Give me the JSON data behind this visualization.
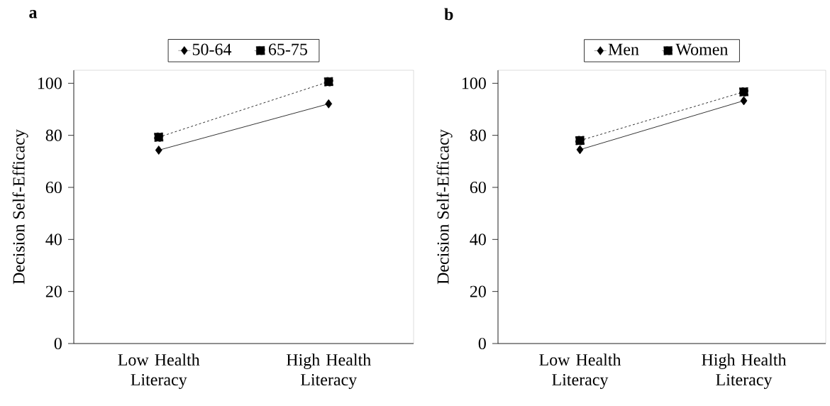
{
  "chart_data": [
    {
      "type": "line",
      "title": "a",
      "ylabel": "Decision Self-Efficacy",
      "categories": [
        "Low Health Literacy",
        "High Health Literacy"
      ],
      "series": [
        {
          "name": "50-64",
          "color": "#000000",
          "values": [
            74.3,
            92.1
          ],
          "marker": "diamond",
          "line_style": "solid"
        },
        {
          "name": "65-75",
          "color": "#000000",
          "values": [
            79.3,
            100.6
          ],
          "marker": "square",
          "line_style": "dashed"
        }
      ],
      "ylim": [
        0,
        105
      ],
      "yticks": [
        0,
        20,
        40,
        60,
        80,
        100
      ],
      "legend": "top"
    },
    {
      "type": "line",
      "title": "b",
      "ylabel": "Decision Self-Efficacy",
      "categories": [
        "Low Health Literacy",
        "High Health Literacy"
      ],
      "series": [
        {
          "name": "Men",
          "color": "#000000",
          "values": [
            74.5,
            93.3
          ],
          "marker": "diamond",
          "line_style": "solid"
        },
        {
          "name": "Women",
          "color": "#000000",
          "values": [
            78.0,
            96.7
          ],
          "marker": "square",
          "line_style": "dashed"
        }
      ],
      "ylim": [
        0,
        105
      ],
      "yticks": [
        0,
        20,
        40,
        60,
        80,
        100
      ],
      "legend": "top"
    }
  ]
}
